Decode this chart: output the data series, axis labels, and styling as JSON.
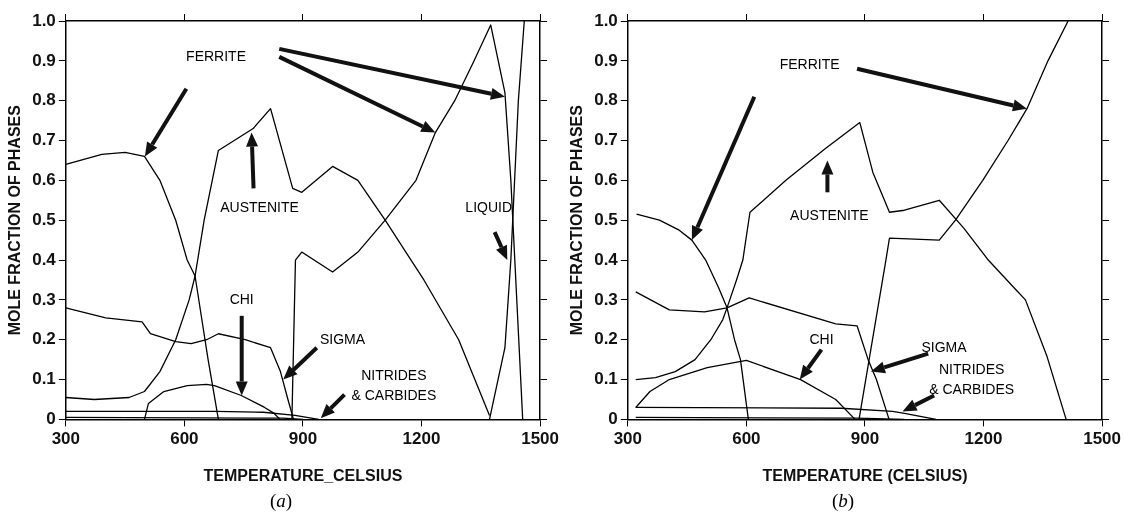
{
  "chart_data": [
    {
      "type": "line",
      "xlabel": "TEMPERATURE_CELSIUS",
      "ylabel": "MOLE FRACTION OF PHASES",
      "xlim": [
        300,
        1500
      ],
      "xticks": [
        300,
        600,
        900,
        1200,
        1500
      ],
      "ylim": [
        0,
        1
      ],
      "yticks": [
        {
          "value": 0,
          "label": "0"
        },
        {
          "value": 0.1,
          "label": "0.1"
        },
        {
          "value": 0.2,
          "label": "0.2"
        },
        {
          "value": 0.3,
          "label": "0.3"
        },
        {
          "value": 0.4,
          "label": "0.4"
        },
        {
          "value": 0.5,
          "label": "0.5"
        },
        {
          "value": 0.6,
          "label": "0.6"
        },
        {
          "value": 0.7,
          "label": "0.7"
        },
        {
          "value": 0.8,
          "label": "0.8"
        },
        {
          "value": 0.9,
          "label": "0.9"
        },
        {
          "value": 1,
          "label": "1.0"
        }
      ],
      "grid": false,
      "legend": false,
      "marker": "none",
      "line_style": "solid",
      "series": [
        {
          "color": "#000000",
          "x": [
            300,
            391,
            450,
            499,
            538,
            578,
            607,
            627,
            660,
            686
          ],
          "values": [
            0.64,
            0.665,
            0.67,
            0.66,
            0.6,
            0.5,
            0.4,
            0.36,
            0.15,
            0
          ]
        },
        {
          "color": "#000000",
          "x": [
            300,
            372,
            460,
            499,
            538,
            578,
            612,
            627,
            650,
            686,
            774,
            818,
            874,
            897,
            975,
            1039,
            1108,
            1206,
            1294,
            1372
          ],
          "values": [
            0.055,
            0.05,
            0.055,
            0.07,
            0.12,
            0.2,
            0.3,
            0.36,
            0.5,
            0.675,
            0.73,
            0.78,
            0.58,
            0.57,
            0.635,
            0.6,
            0.5,
            0.35,
            0.2,
            0.01
          ]
        },
        {
          "color": "#000000",
          "x": [
            872,
            881,
            897,
            975,
            1039,
            1108,
            1186,
            1235,
            1284,
            1333,
            1375,
            1411,
            1426,
            1436,
            1456
          ],
          "values": [
            0,
            0.4,
            0.42,
            0.37,
            0.42,
            0.5,
            0.6,
            0.72,
            0.8,
            0.9,
            0.99,
            0.82,
            0.6,
            0.4,
            0
          ]
        },
        {
          "color": "#000000",
          "x": [
            1372,
            1411,
            1426,
            1445,
            1460
          ],
          "values": [
            0,
            0.18,
            0.4,
            0.8,
            1
          ]
        },
        {
          "color": "#000000",
          "x": [
            300,
            401,
            493,
            514,
            578,
            617,
            656,
            686,
            754,
            818,
            843,
            862,
            876
          ],
          "values": [
            0.28,
            0.255,
            0.245,
            0.215,
            0.195,
            0.19,
            0.2,
            0.215,
            0.2,
            0.18,
            0.12,
            0.05,
            0
          ]
        },
        {
          "color": "#000000",
          "x": [
            499,
            509,
            548,
            607,
            656,
            676,
            744,
            803,
            827,
            842
          ],
          "values": [
            0,
            0.04,
            0.07,
            0.085,
            0.088,
            0.085,
            0.06,
            0.03,
            0.015,
            0
          ]
        },
        {
          "color": "#000000",
          "x": [
            300,
            680,
            800,
            880,
            940
          ],
          "values": [
            0.02,
            0.02,
            0.018,
            0.01,
            0
          ]
        },
        {
          "color": "#000000",
          "x": [
            300,
            850,
            900
          ],
          "values": [
            0.005,
            0.003,
            0
          ]
        }
      ],
      "annotations": [
        "FERRITE",
        "AUSTENITE",
        "LIQUID",
        "CHI",
        "SIGMA",
        "NITRIDES & CARBIDES",
        "(a)"
      ]
    },
    {
      "type": "line",
      "xlabel": "TEMPERATURE (CELSIUS)",
      "ylabel": "MOLE FRACTION OF PHASES",
      "xlim": [
        300,
        1500
      ],
      "xticks": [
        300,
        600,
        900,
        1200,
        1500
      ],
      "ylim": [
        0,
        1
      ],
      "yticks": [
        {
          "value": 0,
          "label": "0"
        },
        {
          "value": 0.1,
          "label": "0.1"
        },
        {
          "value": 0.2,
          "label": "0.2"
        },
        {
          "value": 0.3,
          "label": "0.3"
        },
        {
          "value": 0.4,
          "label": "0.4"
        },
        {
          "value": 0.5,
          "label": "0.5"
        },
        {
          "value": 0.6,
          "label": "0.6"
        },
        {
          "value": 0.7,
          "label": "0.7"
        },
        {
          "value": 0.8,
          "label": "0.8"
        },
        {
          "value": 0.9,
          "label": "0.9"
        },
        {
          "value": 1,
          "label": "1.0"
        }
      ],
      "grid": false,
      "legend": false,
      "marker": "none",
      "line_style": "solid",
      "series": [
        {
          "color": "#000000",
          "x": [
            322,
            380,
            430,
            462,
            497,
            530,
            551,
            570,
            585,
            605
          ],
          "values": [
            0.515,
            0.5,
            0.475,
            0.45,
            0.4,
            0.33,
            0.28,
            0.2,
            0.15,
            0
          ]
        },
        {
          "color": "#000000",
          "x": [
            320,
            370,
            420,
            470,
            510,
            540,
            551,
            575,
            591,
            609,
            700,
            800,
            887,
            920,
            962,
            1000,
            1088,
            1150,
            1212,
            1306,
            1360,
            1409
          ],
          "values": [
            0.1,
            0.105,
            0.12,
            0.15,
            0.2,
            0.25,
            0.28,
            0.35,
            0.4,
            0.52,
            0.6,
            0.68,
            0.745,
            0.62,
            0.52,
            0.525,
            0.55,
            0.48,
            0.4,
            0.3,
            0.16,
            0
          ]
        },
        {
          "color": "#000000",
          "x": [
            885,
            953,
            962,
            1088,
            1129,
            1198,
            1262,
            1310,
            1363,
            1414
          ],
          "values": [
            0,
            0.4,
            0.455,
            0.45,
            0.5,
            0.6,
            0.7,
            0.78,
            0.9,
            1
          ]
        },
        {
          "color": "#000000",
          "x": [
            320,
            405,
            494,
            551,
            607,
            826,
            880,
            908,
            929,
            961
          ],
          "values": [
            0.32,
            0.275,
            0.27,
            0.28,
            0.305,
            0.24,
            0.235,
            0.15,
            0.1,
            0
          ]
        },
        {
          "color": "#000000",
          "x": [
            320,
            356,
            405,
            501,
            600,
            737,
            826,
            875
          ],
          "values": [
            0.03,
            0.07,
            0.1,
            0.13,
            0.148,
            0.1,
            0.05,
            0
          ]
        },
        {
          "color": "#000000",
          "x": [
            320,
            840,
            970,
            1000,
            1080
          ],
          "values": [
            0.03,
            0.028,
            0.02,
            0.015,
            0
          ]
        },
        {
          "color": "#000000",
          "x": [
            320,
            880,
            1000
          ],
          "values": [
            0.005,
            0.003,
            0
          ]
        }
      ],
      "annotations": [
        "FERRITE",
        "AUSTENITE",
        "CHI",
        "SIGMA",
        "NITRIDES & CARBIDES",
        "(b)"
      ]
    }
  ]
}
